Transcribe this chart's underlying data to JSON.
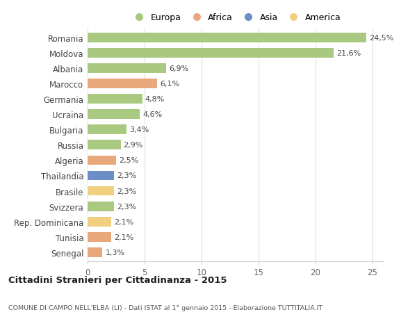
{
  "countries": [
    "Romania",
    "Moldova",
    "Albania",
    "Marocco",
    "Germania",
    "Ucraina",
    "Bulgaria",
    "Russia",
    "Algeria",
    "Thailandia",
    "Brasile",
    "Svizzera",
    "Rep. Dominicana",
    "Tunisia",
    "Senegal"
  ],
  "values": [
    24.5,
    21.6,
    6.9,
    6.1,
    4.8,
    4.6,
    3.4,
    2.9,
    2.5,
    2.3,
    2.3,
    2.3,
    2.1,
    2.1,
    1.3
  ],
  "labels": [
    "24,5%",
    "21,6%",
    "6,9%",
    "6,1%",
    "4,8%",
    "4,6%",
    "3,4%",
    "2,9%",
    "2,5%",
    "2,3%",
    "2,3%",
    "2,3%",
    "2,1%",
    "2,1%",
    "1,3%"
  ],
  "colors": [
    "#a8c97f",
    "#a8c97f",
    "#a8c97f",
    "#e8a87c",
    "#a8c97f",
    "#a8c97f",
    "#a8c97f",
    "#a8c97f",
    "#e8a87c",
    "#6b8ec7",
    "#f0d080",
    "#a8c97f",
    "#f0d080",
    "#e8a87c",
    "#e8a87c"
  ],
  "legend_labels": [
    "Europa",
    "Africa",
    "Asia",
    "America"
  ],
  "legend_colors": [
    "#a8c97f",
    "#e8a87c",
    "#6b8ec7",
    "#f0d080"
  ],
  "title": "Cittadini Stranieri per Cittadinanza - 2015",
  "subtitle": "COMUNE DI CAMPO NELL'ELBA (LI) - Dati ISTAT al 1° gennaio 2015 - Elaborazione TUTTITALIA.IT",
  "xlim": [
    0,
    26
  ],
  "xticks": [
    0,
    5,
    10,
    15,
    20,
    25
  ],
  "background_color": "#ffffff",
  "grid_color": "#e0e0e0"
}
